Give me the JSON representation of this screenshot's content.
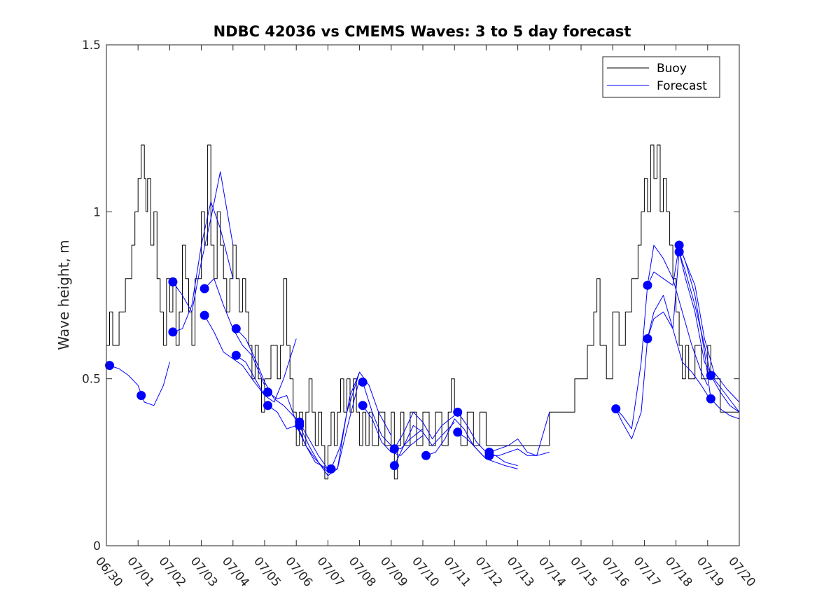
{
  "chart_data": {
    "type": "line",
    "title": "NDBC 42036 vs CMEMS Waves: 3 to 5 day forecast",
    "xlabel": "",
    "ylabel": "Wave height, m",
    "xlim": [
      0,
      20
    ],
    "ylim": [
      0,
      1.5
    ],
    "x_tick_values": [
      0,
      1,
      2,
      3,
      4,
      5,
      6,
      7,
      8,
      9,
      10,
      11,
      12,
      13,
      14,
      15,
      16,
      17,
      18,
      19,
      20
    ],
    "x_tick_labels": [
      "06/30",
      "07/01",
      "07/02",
      "07/03",
      "07/04",
      "07/05",
      "07/06",
      "07/07",
      "07/08",
      "07/09",
      "07/10",
      "07/11",
      "07/12",
      "07/13",
      "07/14",
      "07/15",
      "07/16",
      "07/17",
      "07/18",
      "07/19",
      "07/20"
    ],
    "y_tick_values": [
      0,
      0.5,
      1,
      1.5
    ],
    "y_tick_labels": [
      "0",
      "0.5",
      "1",
      "1.5"
    ],
    "legend": {
      "placement": "top-right",
      "entries": [
        "Buoy",
        "Forecast"
      ]
    },
    "grid": false,
    "colors": {
      "buoy": "#000000",
      "forecast": "#0000ff",
      "marker": "#0000ff"
    },
    "series": [
      {
        "name": "Buoy",
        "step": true,
        "x": [
          0.0,
          0.1,
          0.2,
          0.4,
          0.6,
          0.8,
          0.9,
          1.0,
          1.1,
          1.2,
          1.25,
          1.3,
          1.4,
          1.5,
          1.6,
          1.7,
          1.8,
          1.9,
          2.0,
          2.1,
          2.2,
          2.3,
          2.4,
          2.5,
          2.6,
          2.7,
          2.8,
          3.0,
          3.1,
          3.2,
          3.3,
          3.4,
          3.5,
          3.6,
          3.7,
          3.8,
          3.9,
          4.0,
          4.1,
          4.2,
          4.3,
          4.4,
          4.5,
          4.6,
          4.7,
          4.8,
          4.9,
          5.0,
          5.2,
          5.4,
          5.5,
          5.6,
          5.7,
          5.8,
          5.9,
          6.0,
          6.1,
          6.2,
          6.3,
          6.4,
          6.5,
          6.6,
          6.7,
          6.8,
          6.9,
          7.0,
          7.1,
          7.2,
          7.3,
          7.4,
          7.5,
          7.6,
          7.7,
          7.8,
          7.9,
          8.0,
          8.1,
          8.2,
          8.3,
          8.4,
          8.6,
          8.8,
          9.0,
          9.1,
          9.2,
          9.3,
          9.4,
          9.6,
          9.8,
          10.0,
          10.2,
          10.4,
          10.6,
          10.8,
          10.9,
          11.0,
          11.2,
          11.4,
          11.6,
          11.8,
          12.0,
          12.5,
          13.0,
          13.5,
          14.0,
          14.2,
          14.5,
          14.8,
          15.0,
          15.2,
          15.4,
          15.5,
          15.6,
          15.8,
          16.0,
          16.2,
          16.4,
          16.6,
          16.8,
          16.9,
          17.0,
          17.1,
          17.2,
          17.3,
          17.4,
          17.5,
          17.6,
          17.7,
          17.8,
          17.9,
          18.0,
          18.1,
          18.2,
          18.3,
          18.4,
          18.6,
          18.8,
          19.0,
          19.1,
          19.2,
          19.4,
          19.6,
          19.8,
          20.0
        ],
        "values": [
          0.6,
          0.7,
          0.6,
          0.7,
          0.8,
          0.9,
          1.0,
          1.1,
          1.2,
          1.1,
          1.0,
          1.1,
          0.9,
          1.0,
          0.8,
          0.7,
          0.6,
          0.8,
          0.7,
          0.8,
          0.6,
          0.7,
          0.9,
          0.8,
          0.7,
          0.6,
          0.8,
          1.0,
          0.9,
          1.2,
          0.9,
          0.8,
          1.0,
          0.9,
          0.8,
          0.7,
          0.8,
          0.9,
          0.8,
          0.7,
          0.8,
          0.7,
          0.6,
          0.5,
          0.6,
          0.5,
          0.4,
          0.5,
          0.6,
          0.5,
          0.6,
          0.8,
          0.6,
          0.5,
          0.4,
          0.3,
          0.4,
          0.3,
          0.4,
          0.5,
          0.4,
          0.3,
          0.4,
          0.3,
          0.2,
          0.3,
          0.4,
          0.3,
          0.4,
          0.5,
          0.4,
          0.5,
          0.4,
          0.5,
          0.4,
          0.3,
          0.4,
          0.3,
          0.4,
          0.3,
          0.4,
          0.3,
          0.4,
          0.2,
          0.3,
          0.4,
          0.3,
          0.4,
          0.3,
          0.4,
          0.3,
          0.4,
          0.3,
          0.4,
          0.5,
          0.4,
          0.3,
          0.4,
          0.3,
          0.4,
          0.3,
          0.3,
          0.3,
          0.3,
          0.4,
          0.4,
          0.4,
          0.5,
          0.5,
          0.6,
          0.7,
          0.8,
          0.6,
          0.5,
          0.7,
          0.6,
          0.7,
          0.8,
          0.9,
          1.0,
          1.1,
          1.0,
          1.2,
          1.1,
          1.2,
          1.0,
          1.1,
          1.0,
          0.9,
          0.8,
          0.7,
          0.6,
          0.5,
          0.6,
          0.5,
          0.6,
          0.5,
          0.6,
          0.5,
          0.5,
          0.4,
          0.4,
          0.4,
          0.4
        ]
      },
      {
        "x": [
          0.1,
          0.4,
          0.7,
          1.0,
          1.2,
          1.5,
          1.8,
          2.0
        ],
        "values": [
          0.54,
          0.53,
          0.51,
          0.48,
          0.43,
          0.42,
          0.48,
          0.55
        ]
      },
      {
        "x": [
          2.1,
          2.4,
          2.7,
          3.0,
          3.3,
          3.6,
          4.0
        ],
        "values": [
          0.79,
          0.75,
          0.7,
          0.85,
          0.98,
          1.12,
          0.9
        ]
      },
      {
        "x": [
          2.1,
          2.4,
          2.7,
          3.0,
          3.3,
          3.6,
          4.0
        ],
        "values": [
          0.64,
          0.65,
          0.72,
          0.9,
          1.03,
          0.95,
          0.8
        ]
      },
      {
        "x": [
          3.1,
          3.4,
          3.7,
          4.0,
          4.3,
          4.6,
          5.0
        ],
        "values": [
          0.77,
          0.8,
          0.72,
          0.65,
          0.6,
          0.57,
          0.48
        ]
      },
      {
        "x": [
          3.1,
          3.4,
          3.7,
          4.0,
          4.3,
          4.6,
          5.0
        ],
        "values": [
          0.69,
          0.64,
          0.58,
          0.56,
          0.54,
          0.5,
          0.45
        ]
      },
      {
        "x": [
          4.1,
          4.4,
          4.7,
          5.0,
          5.3,
          5.6,
          6.0
        ],
        "values": [
          0.65,
          0.62,
          0.56,
          0.49,
          0.44,
          0.42,
          0.38
        ]
      },
      {
        "x": [
          4.1,
          4.4,
          4.7,
          5.0,
          5.3,
          5.6,
          6.0
        ],
        "values": [
          0.57,
          0.55,
          0.5,
          0.45,
          0.43,
          0.5,
          0.62
        ]
      },
      {
        "x": [
          5.1,
          5.4,
          5.7,
          6.0,
          6.3,
          6.6,
          7.0
        ],
        "values": [
          0.46,
          0.44,
          0.45,
          0.37,
          0.3,
          0.25,
          0.23
        ]
      },
      {
        "x": [
          5.1,
          5.4,
          5.7,
          6.0,
          6.3,
          6.6,
          7.0
        ],
        "values": [
          0.42,
          0.4,
          0.35,
          0.36,
          0.3,
          0.26,
          0.22
        ]
      },
      {
        "x": [
          6.1,
          6.4,
          6.7,
          7.0,
          7.3,
          7.6,
          8.0
        ],
        "values": [
          0.37,
          0.32,
          0.27,
          0.23,
          0.23,
          0.4,
          0.52
        ]
      },
      {
        "x": [
          6.1,
          6.4,
          6.7,
          7.0,
          7.3,
          7.6,
          8.0
        ],
        "values": [
          0.36,
          0.3,
          0.25,
          0.21,
          0.23,
          0.35,
          0.5
        ]
      },
      {
        "x": [
          7.1,
          7.4,
          7.7,
          8.0,
          8.3,
          8.6,
          9.0
        ],
        "values": [
          0.23,
          0.3,
          0.45,
          0.52,
          0.48,
          0.4,
          0.33
        ]
      },
      {
        "x": [
          8.1,
          8.4,
          8.7,
          9.0,
          9.3,
          9.6,
          10.0
        ],
        "values": [
          0.49,
          0.4,
          0.33,
          0.3,
          0.29,
          0.32,
          0.35
        ]
      },
      {
        "x": [
          8.1,
          8.4,
          8.7,
          9.0,
          9.3,
          9.6,
          10.0
        ],
        "values": [
          0.42,
          0.38,
          0.31,
          0.28,
          0.27,
          0.3,
          0.33
        ]
      },
      {
        "x": [
          9.1,
          9.4,
          9.7,
          10.0,
          10.3,
          10.6,
          11.0
        ],
        "values": [
          0.29,
          0.34,
          0.4,
          0.37,
          0.32,
          0.36,
          0.39
        ]
      },
      {
        "x": [
          9.1,
          9.4,
          9.7,
          10.0,
          10.3,
          10.6,
          11.0
        ],
        "values": [
          0.24,
          0.3,
          0.36,
          0.34,
          0.3,
          0.33,
          0.37
        ]
      },
      {
        "x": [
          10.1,
          10.4,
          10.7,
          11.0,
          11.3,
          11.6,
          12.0
        ],
        "values": [
          0.27,
          0.28,
          0.32,
          0.38,
          0.35,
          0.3,
          0.26
        ]
      },
      {
        "x": [
          11.1,
          11.4,
          11.7,
          12.0,
          12.3,
          12.6,
          13.0
        ],
        "values": [
          0.4,
          0.36,
          0.31,
          0.28,
          0.27,
          0.25,
          0.24
        ]
      },
      {
        "x": [
          11.1,
          11.4,
          11.7,
          12.0,
          12.3,
          12.6,
          13.0
        ],
        "values": [
          0.34,
          0.32,
          0.29,
          0.26,
          0.25,
          0.24,
          0.23
        ]
      },
      {
        "x": [
          12.1,
          12.4,
          12.7,
          13.0,
          13.3,
          13.6,
          14.0
        ],
        "values": [
          0.28,
          0.29,
          0.3,
          0.32,
          0.28,
          0.27,
          0.4
        ]
      },
      {
        "x": [
          12.1,
          12.4,
          12.7,
          13.0,
          13.3,
          13.6,
          14.0
        ],
        "values": [
          0.27,
          0.27,
          0.28,
          0.29,
          0.27,
          0.27,
          0.28
        ]
      },
      {
        "x": [
          16.1,
          16.3,
          16.6,
          16.9,
          17.1,
          17.3,
          17.6,
          17.9,
          18.2,
          18.5,
          18.8,
          19.0
        ],
        "values": [
          0.41,
          0.37,
          0.32,
          0.4,
          0.62,
          0.7,
          0.75,
          0.65,
          0.55,
          0.52,
          0.48,
          0.45
        ]
      },
      {
        "x": [
          16.1,
          16.3,
          16.6,
          16.9,
          17.1,
          17.3,
          17.6,
          17.9,
          18.2,
          18.5,
          18.8,
          19.0
        ],
        "values": [
          0.41,
          0.39,
          0.35,
          0.55,
          0.78,
          0.9,
          0.86,
          0.8,
          0.7,
          0.6,
          0.52,
          0.48
        ]
      },
      {
        "x": [
          17.1,
          17.3,
          17.6,
          17.9,
          18.1,
          18.3,
          18.6,
          18.9,
          19.2,
          19.6,
          20.0
        ],
        "values": [
          0.62,
          0.68,
          0.7,
          0.65,
          0.88,
          0.8,
          0.7,
          0.55,
          0.5,
          0.45,
          0.4
        ]
      },
      {
        "x": [
          17.1,
          17.3,
          17.6,
          17.9,
          18.1,
          18.3,
          18.6,
          18.9,
          19.2,
          19.6,
          20.0
        ],
        "values": [
          0.78,
          0.82,
          0.8,
          0.78,
          0.9,
          0.85,
          0.78,
          0.62,
          0.52,
          0.47,
          0.43
        ]
      },
      {
        "x": [
          18.1,
          18.3,
          18.6,
          18.9,
          19.1,
          19.4,
          19.7,
          20.0
        ],
        "values": [
          0.9,
          0.85,
          0.75,
          0.58,
          0.44,
          0.41,
          0.39,
          0.38
        ]
      },
      {
        "x": [
          18.1,
          18.3,
          18.6,
          18.9,
          19.1,
          19.4,
          19.7,
          20.0
        ],
        "values": [
          0.88,
          0.82,
          0.72,
          0.6,
          0.51,
          0.46,
          0.42,
          0.4
        ]
      }
    ],
    "markers": {
      "x": [
        0.1,
        1.1,
        2.1,
        2.1,
        3.1,
        3.1,
        4.1,
        4.1,
        5.1,
        5.1,
        6.1,
        6.1,
        7.1,
        8.1,
        8.1,
        9.1,
        9.1,
        10.1,
        11.1,
        11.1,
        12.1,
        12.1,
        16.1,
        17.1,
        17.1,
        18.1,
        18.1,
        19.1,
        19.1
      ],
      "values": [
        0.54,
        0.45,
        0.79,
        0.64,
        0.77,
        0.69,
        0.65,
        0.57,
        0.46,
        0.42,
        0.37,
        0.36,
        0.23,
        0.49,
        0.42,
        0.29,
        0.24,
        0.27,
        0.4,
        0.34,
        0.28,
        0.27,
        0.41,
        0.78,
        0.62,
        0.9,
        0.88,
        0.51,
        0.44
      ]
    }
  }
}
